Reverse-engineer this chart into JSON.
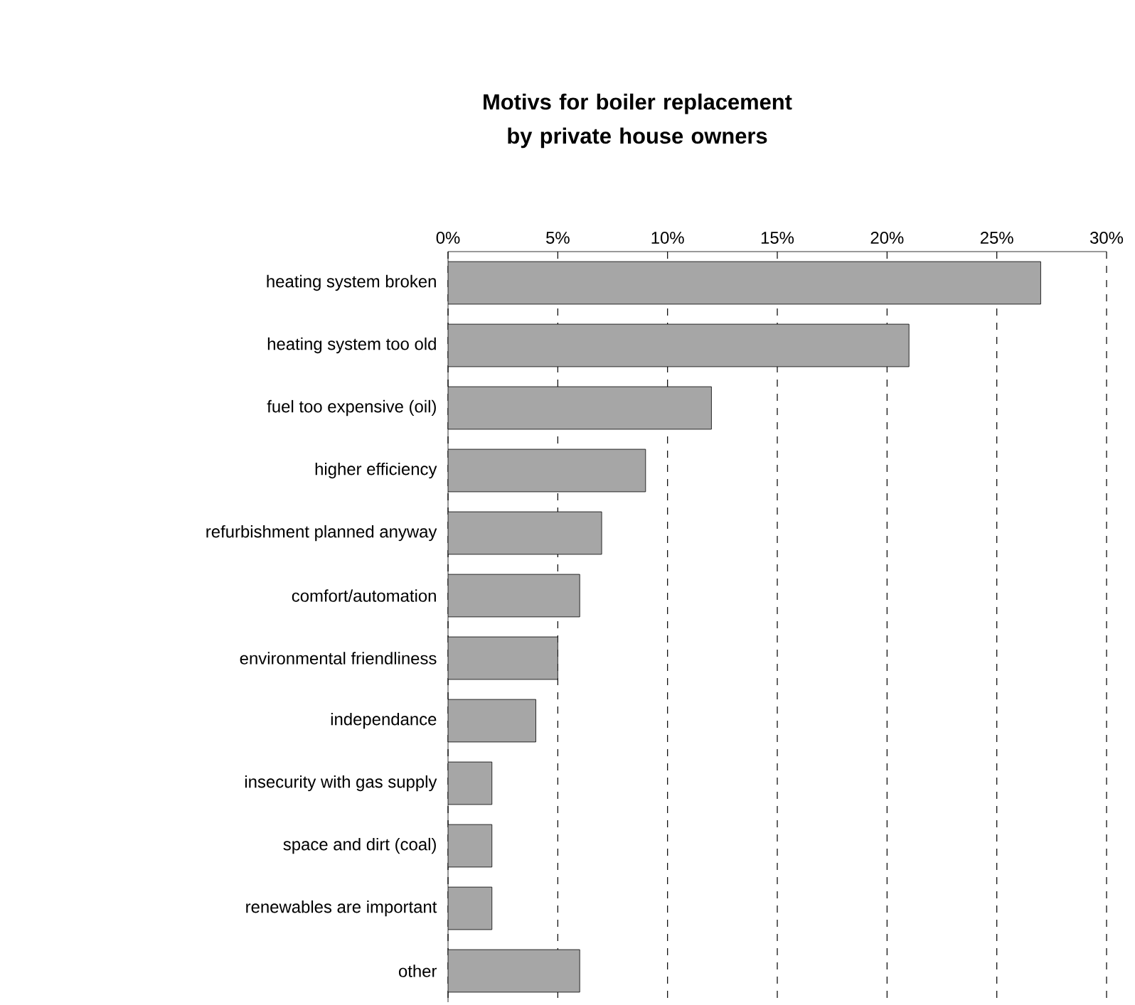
{
  "chart_data": {
    "type": "bar",
    "orientation": "horizontal",
    "title": "Motivs for boiler replacement by private house owners",
    "categories": [
      "heating system broken",
      "heating system too old",
      "fuel too expensive (oil)",
      "higher efficiency",
      "refurbishment planned anyway",
      "comfort/automation",
      "environmental friendliness",
      "independance",
      "insecurity with gas supply",
      "space and dirt (coal)",
      "renewables are important",
      "other"
    ],
    "values": [
      27,
      21,
      12,
      9,
      7,
      6,
      5,
      4,
      2,
      2,
      2,
      6
    ],
    "color": "#a6a6a6",
    "xlim": [
      0,
      30
    ],
    "xticks": [
      {
        "value": 0,
        "label": "0%"
      },
      {
        "value": 5,
        "label": "5%"
      },
      {
        "value": 10,
        "label": "10%"
      },
      {
        "value": 15,
        "label": "15%"
      },
      {
        "value": 20,
        "label": "20%"
      },
      {
        "value": 25,
        "label": "25%"
      },
      {
        "value": 30,
        "label": "30%"
      }
    ],
    "grid": "x"
  }
}
